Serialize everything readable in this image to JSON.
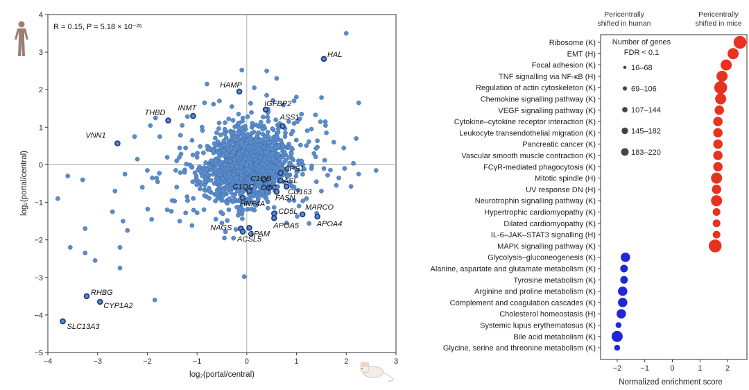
{
  "chart_data": [
    {
      "type": "scatter",
      "title": "",
      "annotation": "R = 0.15, P = 5.18 × 10⁻²⁵",
      "xlabel": "log₂(portal/central)",
      "ylabel": "log₂(portal/central)",
      "xlim": [
        -4,
        3
      ],
      "ylim": [
        -5,
        4
      ],
      "xticks": [
        "−4",
        "−3",
        "−2",
        "−1",
        "0",
        "1",
        "2",
        "3"
      ],
      "yticks": [
        "4",
        "3",
        "2",
        "1",
        "0",
        "−1",
        "−2",
        "−3",
        "−4",
        "−5"
      ],
      "icons": {
        "y_axis": "human-figure-icon",
        "x_axis": "mouse-icon"
      },
      "point_color": "#5b8ccc",
      "highlight_color": "#1f3d7a",
      "labeled_points": [
        {
          "gene": "HAL",
          "x": 1.55,
          "y": 2.82
        },
        {
          "gene": "HAMP",
          "x": -0.15,
          "y": 1.95
        },
        {
          "gene": "IGFBP2",
          "x": 0.38,
          "y": 1.47
        },
        {
          "gene": "THBD",
          "x": -1.58,
          "y": 1.18
        },
        {
          "gene": "INMT",
          "x": -1.08,
          "y": 1.3
        },
        {
          "gene": "ASS1",
          "x": 0.72,
          "y": 1.03
        },
        {
          "gene": "VNN1",
          "x": -2.6,
          "y": 0.57
        },
        {
          "gene": "CPS1",
          "x": 0.68,
          "y": -0.22
        },
        {
          "gene": "C1QB",
          "x": 0.35,
          "y": -0.4
        },
        {
          "gene": "ASL",
          "x": 0.68,
          "y": -0.42
        },
        {
          "gene": "CD163",
          "x": 0.8,
          "y": -0.58
        },
        {
          "gene": "C1QC",
          "x": 0.05,
          "y": -0.7
        },
        {
          "gene": "OTC",
          "x": 0.45,
          "y": -0.62
        },
        {
          "gene": "FASN",
          "x": 0.6,
          "y": -0.72
        },
        {
          "gene": "HNF4A",
          "x": -0.08,
          "y": -0.88
        },
        {
          "gene": "CD5L",
          "x": 0.55,
          "y": -1.3
        },
        {
          "gene": "MARCO",
          "x": 1.12,
          "y": -1.32
        },
        {
          "gene": "APOA5",
          "x": 0.55,
          "y": -1.42
        },
        {
          "gene": "APOA4",
          "x": 1.42,
          "y": -1.38
        },
        {
          "gene": "NAGS",
          "x": -0.12,
          "y": -1.7
        },
        {
          "gene": "GPAM",
          "x": 0.05,
          "y": -1.68
        },
        {
          "gene": "ACSL5",
          "x": -0.08,
          "y": -1.78
        },
        {
          "gene": "RHBG",
          "x": -3.22,
          "y": -3.5
        },
        {
          "gene": "CYP1A2",
          "x": -2.95,
          "y": -3.65
        },
        {
          "gene": "SLC13A3",
          "x": -3.7,
          "y": -4.17
        }
      ],
      "outlier_points": [
        [
          2.0,
          3.5
        ],
        [
          2.25,
          1.65
        ],
        [
          2.2,
          0.7
        ],
        [
          2.6,
          -0.15
        ],
        [
          2.25,
          -0.25
        ],
        [
          1.85,
          -0.35
        ],
        [
          1.4,
          -0.45
        ],
        [
          1.6,
          0.85
        ],
        [
          1.3,
          0.95
        ],
        [
          1.75,
          0.6
        ],
        [
          1.95,
          0.45
        ],
        [
          1.1,
          1.35
        ],
        [
          0.95,
          1.7
        ],
        [
          0.6,
          2.3
        ],
        [
          0.4,
          2.5
        ],
        [
          -0.1,
          2.52
        ],
        [
          -0.8,
          2.15
        ],
        [
          -0.85,
          1.65
        ],
        [
          -1.3,
          1.05
        ],
        [
          -0.9,
          1.0
        ],
        [
          -1.35,
          0.45
        ],
        [
          -1.1,
          0.65
        ],
        [
          -1.6,
          0.2
        ],
        [
          -1.75,
          0.75
        ],
        [
          -2.0,
          -0.15
        ],
        [
          -2.2,
          0.15
        ],
        [
          -1.9,
          -0.35
        ],
        [
          -2.1,
          -0.6
        ],
        [
          -2.45,
          -0.25
        ],
        [
          -3.3,
          -0.4
        ],
        [
          -3.6,
          -0.3
        ],
        [
          -3.8,
          -0.9
        ],
        [
          -2.7,
          -1.25
        ],
        [
          -2.65,
          -0.7
        ],
        [
          -2.4,
          -1.75
        ],
        [
          -2.55,
          -2.2
        ],
        [
          -2.55,
          -2.75
        ],
        [
          -3.25,
          -2.35
        ],
        [
          -3.55,
          -2.2
        ],
        [
          -3.05,
          -2.55
        ],
        [
          -3.25,
          -1.7
        ],
        [
          -1.85,
          -3.6
        ],
        [
          -0.05,
          -2.98
        ],
        [
          -0.45,
          -1.95
        ],
        [
          -0.5,
          -1.55
        ],
        [
          -1.35,
          -1.5
        ],
        [
          -1.6,
          -1.2
        ],
        [
          -1.5,
          -0.95
        ],
        [
          -1.2,
          -0.85
        ],
        [
          0.95,
          -0.95
        ],
        [
          1.2,
          -0.9
        ],
        [
          1.5,
          -0.7
        ],
        [
          1.8,
          -0.55
        ],
        [
          1.55,
          -0.1
        ],
        [
          1.35,
          0.3
        ],
        [
          0.9,
          0.45
        ],
        [
          0.4,
          1.85
        ],
        [
          0.15,
          2.05
        ],
        [
          -0.55,
          1.7
        ],
        [
          -0.3,
          1.55
        ],
        [
          1.05,
          -1.1
        ],
        [
          0.8,
          -1.55
        ],
        [
          -1.0,
          0.2
        ],
        [
          -1.25,
          -0.2
        ],
        [
          -0.95,
          -0.45
        ],
        [
          0.85,
          0.2
        ],
        [
          1.1,
          0.1
        ],
        [
          0.95,
          1.1
        ]
      ]
    },
    {
      "type": "scatter",
      "title": "",
      "header_left": [
        "Pericentrally",
        "shifted in human"
      ],
      "header_right": [
        "Pericentrally",
        "shifted in mice"
      ],
      "xlabel": "Normalized enrichment score",
      "xlim": [
        -2.6,
        2.7
      ],
      "xticks": [
        "−2",
        "−1",
        "0",
        "1",
        "2"
      ],
      "legend": {
        "title": [
          "Number of genes",
          "FDR < 0.1"
        ],
        "items": [
          "16–68",
          "69–106",
          "107–144",
          "145–182",
          "183–220"
        ],
        "color": "#444444"
      },
      "colors": {
        "up": "#e8321f",
        "down": "#1f28d6"
      },
      "terms": [
        {
          "label": "Ribosome (K)",
          "nes": 2.45,
          "size": 5
        },
        {
          "label": "EMT (H)",
          "nes": 2.2,
          "size": 4
        },
        {
          "label": "Focal adhesion (K)",
          "nes": 1.95,
          "size": 4
        },
        {
          "label": "TNF signalling via NF-κB (H)",
          "nes": 1.8,
          "size": 4
        },
        {
          "label": "Regulation of actin cytoskeleton (K)",
          "nes": 1.75,
          "size": 5
        },
        {
          "label": "Chemokine signalling pathway (K)",
          "nes": 1.75,
          "size": 4
        },
        {
          "label": "VEGF signalling pathway (K)",
          "nes": 1.7,
          "size": 3
        },
        {
          "label": "Cytokine–cytokine receptor interaction (K)",
          "nes": 1.65,
          "size": 3
        },
        {
          "label": "Leukocyte transendothelial migration (K)",
          "nes": 1.65,
          "size": 3
        },
        {
          "label": "Pancreatic cancer (K)",
          "nes": 1.65,
          "size": 3
        },
        {
          "label": "Vascular smooth muscle contraction (K)",
          "nes": 1.65,
          "size": 3
        },
        {
          "label": "FCγR-mediated phagocytosis (K)",
          "nes": 1.65,
          "size": 3
        },
        {
          "label": "Mitotic spindle (H)",
          "nes": 1.6,
          "size": 4
        },
        {
          "label": "UV response DN (H)",
          "nes": 1.6,
          "size": 3
        },
        {
          "label": "Neurotrophin signalling pathway (K)",
          "nes": 1.6,
          "size": 4
        },
        {
          "label": "Hypertrophic cardiomyopathy (K)",
          "nes": 1.6,
          "size": 2
        },
        {
          "label": "Dilated cardiomyopathy (K)",
          "nes": 1.6,
          "size": 2
        },
        {
          "label": "IL-6–JAK–STAT3 signalling (H)",
          "nes": 1.6,
          "size": 2
        },
        {
          "label": "MAPK signalling pathway (K)",
          "nes": 1.55,
          "size": 5
        },
        {
          "label": "Glycolysis–gluconeogenesis (K)",
          "nes": -1.7,
          "size": 3
        },
        {
          "label": "Alanine, aspartate and glutamate metabolism (K)",
          "nes": -1.75,
          "size": 2
        },
        {
          "label": "Tyrosine metabolism (K)",
          "nes": -1.75,
          "size": 2
        },
        {
          "label": "Arginine and proline metabolism (K)",
          "nes": -1.8,
          "size": 3
        },
        {
          "label": "Complement and coagulation cascades (K)",
          "nes": -1.8,
          "size": 3
        },
        {
          "label": "Cholesterol homeostasis (H)",
          "nes": -1.85,
          "size": 3
        },
        {
          "label": "Systemic lupus erythematosus (K)",
          "nes": -1.95,
          "size": 1
        },
        {
          "label": "Bile acid metabolism (K)",
          "nes": -2.0,
          "size": 4
        },
        {
          "label": "Glycine, serine and threonine metabolism (K)",
          "nes": -2.0,
          "size": 1
        }
      ]
    }
  ]
}
